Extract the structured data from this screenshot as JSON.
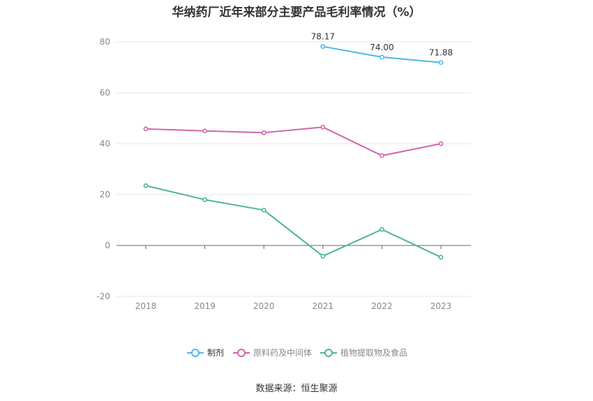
{
  "title": "华纳药厂近年来部分主要产品毛利率情况（%）",
  "source": "数据来源：恒生聚源",
  "chart_data": {
    "type": "line",
    "title": "华纳药厂近年来部分主要产品毛利率情况（%）",
    "xlabel": "",
    "ylabel": "",
    "categories": [
      "2018",
      "2019",
      "2020",
      "2021",
      "2022",
      "2023"
    ],
    "ylim": [
      -20,
      80
    ],
    "yticks": [
      -20,
      0,
      20,
      40,
      60,
      80
    ],
    "grid": true,
    "legend": "bottom",
    "series": [
      {
        "name": "制剂",
        "color": "#4db8e8",
        "values": [
          null,
          null,
          null,
          78.17,
          74.0,
          71.88
        ],
        "labels": [
          "",
          "",
          "",
          "78.17",
          "74.00",
          "71.88"
        ]
      },
      {
        "name": "原料药及中间体",
        "color": "#d066aa",
        "values": [
          45.8,
          45.0,
          44.3,
          46.5,
          35.3,
          40.0
        ],
        "labels": [
          "",
          "",
          "",
          "",
          "",
          ""
        ]
      },
      {
        "name": "植物提取物及食品",
        "color": "#4db596",
        "values": [
          23.5,
          18.0,
          13.9,
          -4.2,
          6.3,
          -4.6
        ],
        "labels": [
          "",
          "",
          "",
          "",
          "",
          ""
        ]
      }
    ]
  }
}
